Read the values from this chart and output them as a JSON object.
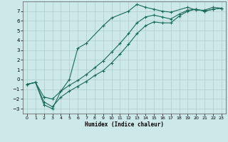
{
  "bg_color": "#cce8e8",
  "line_color": "#1a6b5a",
  "xlabel": "Humidex (Indice chaleur)",
  "xlim": [
    -0.5,
    23.5
  ],
  "ylim": [
    -3.5,
    8.0
  ],
  "yticks": [
    -3,
    -2,
    -1,
    0,
    1,
    2,
    3,
    4,
    5,
    6,
    7
  ],
  "xticks": [
    0,
    1,
    2,
    3,
    4,
    5,
    6,
    7,
    8,
    9,
    10,
    11,
    12,
    13,
    14,
    15,
    16,
    17,
    18,
    19,
    20,
    21,
    22,
    23
  ],
  "line1_x": [
    0,
    1,
    2,
    3,
    4,
    5,
    6,
    7,
    9,
    10,
    12,
    13,
    14,
    15,
    16,
    17,
    19,
    20,
    21,
    22,
    23
  ],
  "line1_y": [
    -0.5,
    -0.3,
    -2.6,
    -3.0,
    -1.2,
    0.0,
    3.2,
    3.7,
    5.5,
    6.3,
    7.0,
    7.7,
    7.4,
    7.2,
    7.0,
    6.9,
    7.4,
    7.1,
    7.1,
    7.4,
    7.3
  ],
  "line2_x": [
    0,
    1,
    2,
    3,
    4,
    5,
    6,
    7,
    8,
    9,
    10,
    11,
    12,
    13,
    14,
    15,
    16,
    17,
    18,
    19,
    20,
    21,
    22,
    23
  ],
  "line2_y": [
    -0.5,
    -0.3,
    -1.8,
    -2.0,
    -1.2,
    -0.6,
    -0.1,
    0.5,
    1.2,
    1.9,
    2.8,
    3.7,
    4.7,
    5.8,
    6.4,
    6.6,
    6.4,
    6.2,
    6.7,
    7.1,
    7.2,
    7.0,
    7.2,
    7.3
  ],
  "line3_x": [
    0,
    1,
    2,
    3,
    4,
    5,
    6,
    7,
    8,
    9,
    10,
    11,
    12,
    13,
    14,
    15,
    16,
    17,
    18,
    19,
    20,
    21,
    22,
    23
  ],
  "line3_y": [
    -0.5,
    -0.3,
    -2.3,
    -2.8,
    -1.8,
    -1.2,
    -0.7,
    -0.2,
    0.4,
    0.9,
    1.7,
    2.6,
    3.6,
    4.7,
    5.5,
    5.9,
    5.8,
    5.8,
    6.5,
    7.0,
    7.2,
    7.0,
    7.2,
    7.3
  ]
}
